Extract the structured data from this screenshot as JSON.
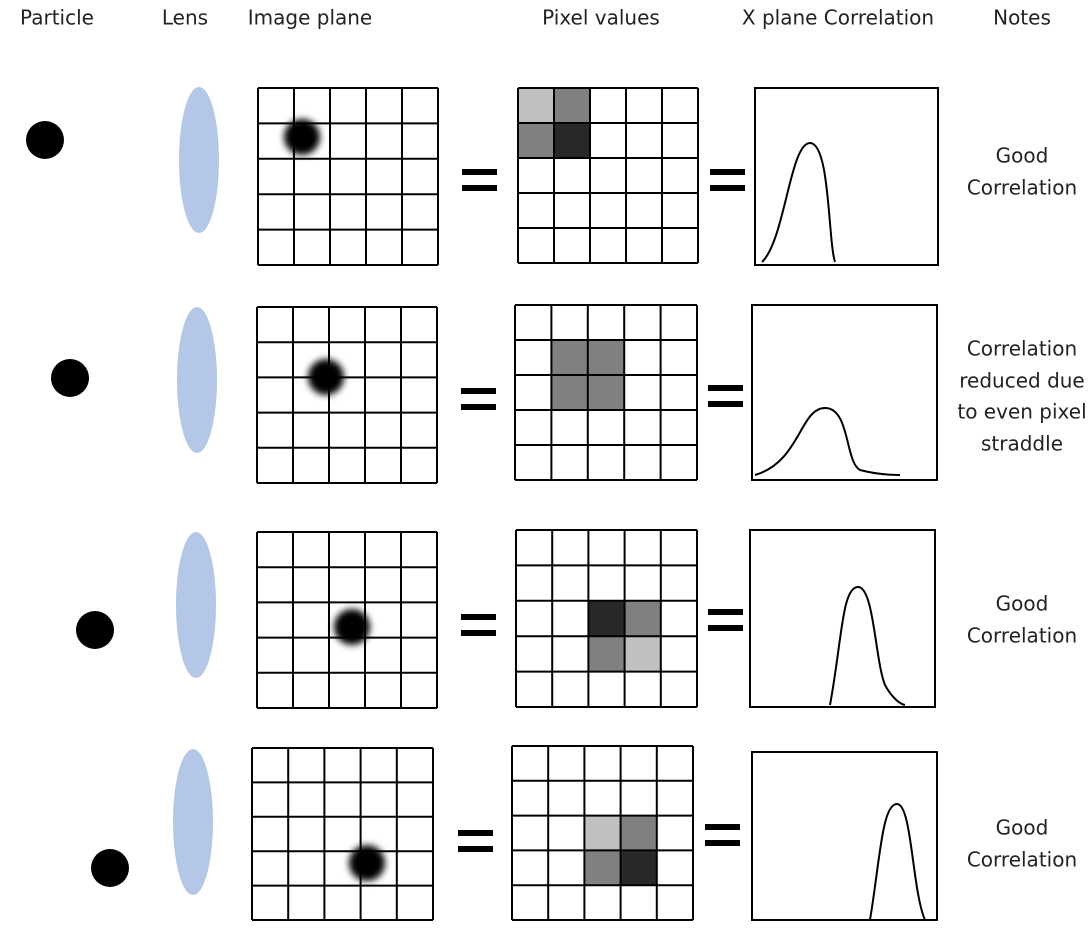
{
  "headers": [
    "Particle",
    "Lens",
    "Image plane",
    "Pixel values",
    "X plane Correlation",
    "Notes"
  ],
  "rows": [
    {
      "note": [
        "Good",
        "Correlation"
      ]
    },
    {
      "note": [
        "Correlation",
        "reduced due",
        "to even pixel",
        "straddle"
      ]
    },
    {
      "note": [
        "Good",
        "Correlation"
      ]
    },
    {
      "note": [
        "Good",
        "Correlation"
      ]
    }
  ]
}
